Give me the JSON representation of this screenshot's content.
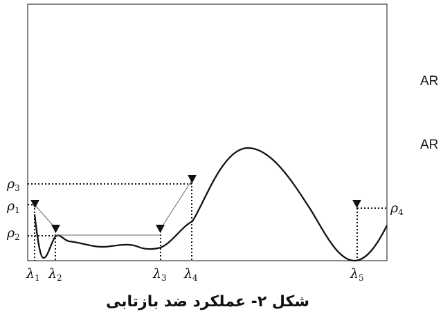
{
  "figure": {
    "caption": "شکل ۲- عملکرد ضد بازتابی",
    "side_labels": [
      "AR",
      "AR"
    ],
    "rho": {
      "rho1": {
        "sym": "ρ",
        "sub": "1"
      },
      "rho2": {
        "sym": "ρ",
        "sub": "2"
      },
      "rho3": {
        "sym": "ρ",
        "sub": "3"
      },
      "rho4": {
        "sym": "ρ",
        "sub": "4"
      }
    },
    "lambda": {
      "l1": {
        "sym": "λ",
        "sub": "1"
      },
      "l2": {
        "sym": "λ",
        "sub": "2"
      },
      "l3": {
        "sym": "λ",
        "sub": "3"
      },
      "l4": {
        "sym": "λ",
        "sub": "4"
      },
      "l5": {
        "sym": "λ",
        "sub": "5"
      }
    }
  }
}
